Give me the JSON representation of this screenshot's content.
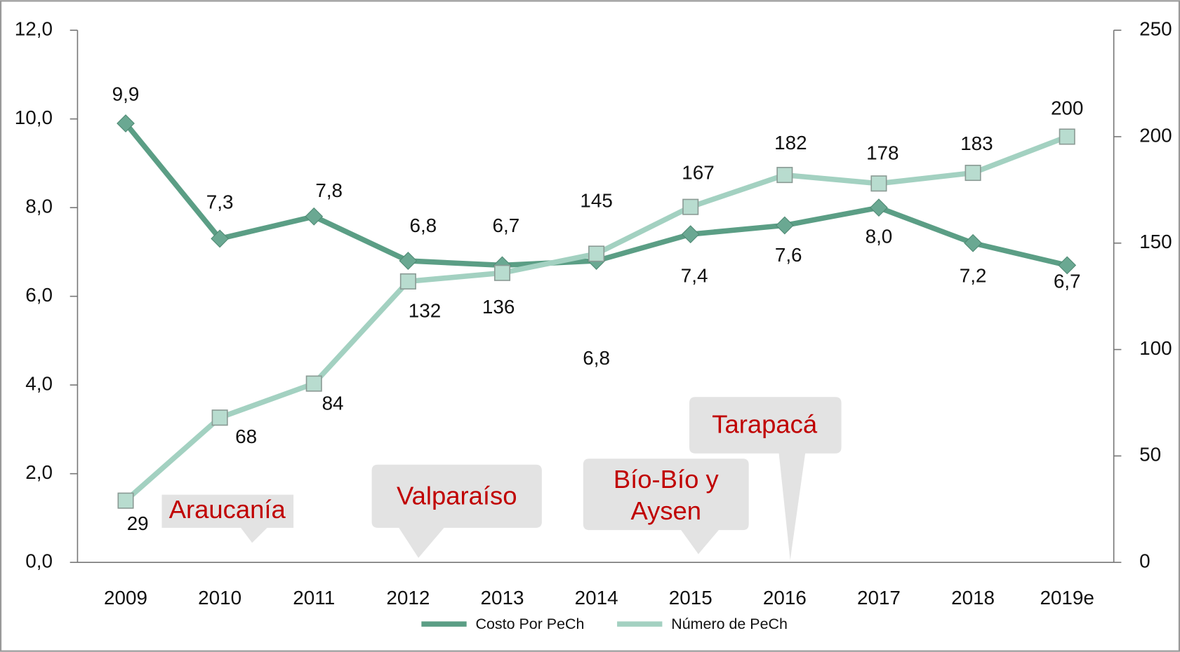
{
  "chart_data": {
    "type": "line",
    "categories": [
      "2009",
      "2010",
      "2011",
      "2012",
      "2013",
      "2014",
      "2015",
      "2016",
      "2017",
      "2018",
      "2019e"
    ],
    "series": [
      {
        "name": "Costo Por PeCh",
        "color": "#5b9e85",
        "axis": "y",
        "values": [
          9.9,
          7.3,
          7.8,
          6.8,
          6.7,
          6.8,
          7.4,
          7.6,
          8.0,
          7.2,
          6.7
        ],
        "value_labels": [
          "9,9",
          "7,3",
          "7,8",
          "6,8",
          "6,7",
          "6,8",
          "7,4",
          "7,6",
          "8,0",
          "7,2",
          "6,7"
        ]
      },
      {
        "name": "Número de PeCh",
        "color": "#a3d1c1",
        "axis": "y2",
        "values": [
          29,
          68,
          84,
          132,
          136,
          145,
          167,
          182,
          178,
          183,
          200
        ]
      }
    ],
    "ylim": [
      0,
      12
    ],
    "yticks": [
      {
        "value": 0,
        "label": "0,0"
      },
      {
        "value": 2,
        "label": "2,0"
      },
      {
        "value": 4,
        "label": "4,0"
      },
      {
        "value": 6,
        "label": "6,0"
      },
      {
        "value": 8,
        "label": "8,0"
      },
      {
        "value": 10,
        "label": "10,0"
      },
      {
        "value": 12,
        "label": "12,0"
      }
    ],
    "y2lim": [
      0,
      250
    ],
    "y2ticks": [
      0,
      50,
      100,
      150,
      200,
      250
    ],
    "legend": "bottom",
    "annotations": [
      {
        "lines": [
          "Araucanía"
        ]
      },
      {
        "lines": [
          "Valparaíso"
        ]
      },
      {
        "lines": [
          "Bío-Bío y",
          "Aysen"
        ]
      },
      {
        "lines": [
          "Tarapacá"
        ]
      }
    ]
  }
}
